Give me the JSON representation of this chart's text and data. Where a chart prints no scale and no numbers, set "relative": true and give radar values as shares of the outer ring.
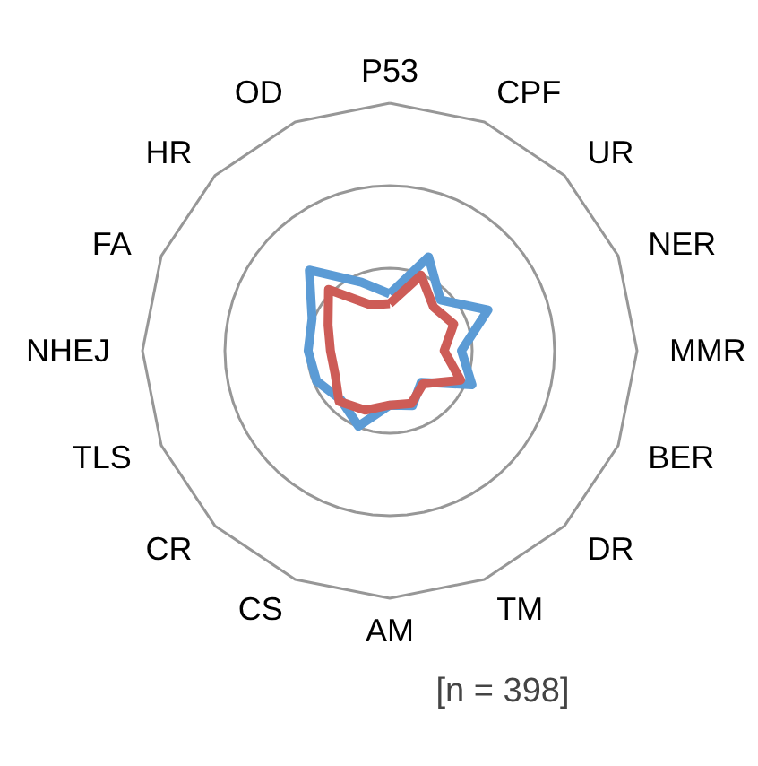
{
  "chart_data": {
    "type": "radar",
    "relative": true,
    "grid": true,
    "categories": [
      "P53",
      "CPF",
      "UR",
      "NER",
      "MMR",
      "BER",
      "DR",
      "TM",
      "AM",
      "CS",
      "CR",
      "TLS",
      "NHEJ",
      "FA",
      "HR",
      "OD"
    ],
    "series": [
      {
        "color": "#5b9bd5",
        "values": [
          0.23,
          0.41,
          0.29,
          0.43,
          0.29,
          0.36,
          0.18,
          0.24,
          0.22,
          0.33,
          0.28,
          0.32,
          0.33,
          0.34,
          0.46,
          0.3
        ]
      },
      {
        "color": "#cd5c57",
        "values": [
          0.19,
          0.33,
          0.25,
          0.28,
          0.22,
          0.31,
          0.19,
          0.23,
          0.22,
          0.26,
          0.29,
          0.24,
          0.24,
          0.27,
          0.35,
          0.2
        ]
      }
    ],
    "annotations": [
      "[n = 398]"
    ]
  }
}
